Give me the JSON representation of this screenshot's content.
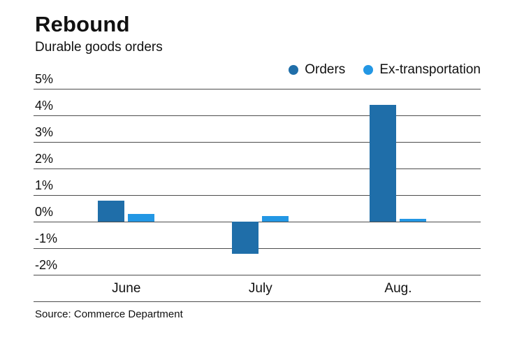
{
  "title": "Rebound",
  "subtitle": "Durable goods orders",
  "source": "Source: Commerce Department",
  "chart_data": {
    "type": "bar",
    "title": "Rebound",
    "subtitle": "Durable goods orders",
    "categories": [
      "June",
      "July",
      "Aug."
    ],
    "series": [
      {
        "name": "Orders",
        "color": "#1f6ea9",
        "values": [
          0.8,
          -1.2,
          4.4
        ]
      },
      {
        "name": "Ex-transportation",
        "color": "#2397e4",
        "values": [
          0.3,
          0.2,
          0.1
        ]
      }
    ],
    "xlabel": "",
    "ylabel": "",
    "ylim": [
      -2,
      5
    ],
    "yticks": [
      5,
      4,
      3,
      2,
      1,
      0,
      -1,
      -2
    ],
    "ytick_labels": [
      "5%",
      "4%",
      "3%",
      "2%",
      "1%",
      "0%",
      "-1%",
      "-2%"
    ],
    "grid": true,
    "legend_position": "top-right",
    "source": "Source: Commerce Department"
  }
}
